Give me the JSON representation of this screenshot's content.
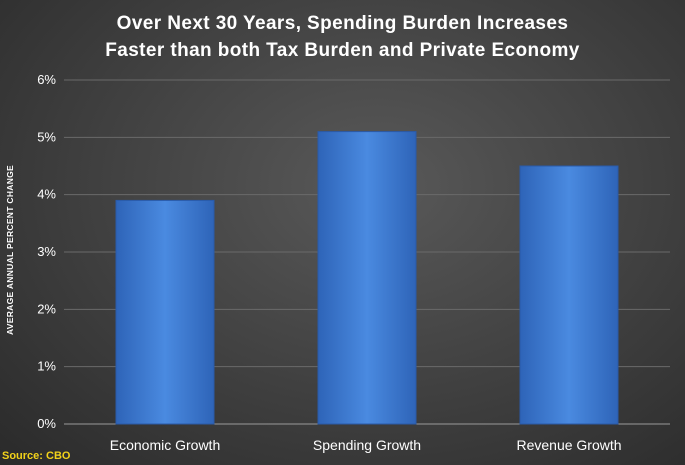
{
  "chart_title": {
    "line1": "Over Next 30 Years, Spending Burden Increases",
    "line2": "Faster than both Tax Burden and Private Economy"
  },
  "source": "Source: CBO",
  "chart_data": {
    "type": "bar",
    "title": "Over Next 30 Years, Spending Burden Increases Faster than both Tax Burden and Private Economy",
    "xlabel": "",
    "ylabel": "AVERAGE ANNUAL PERCENT CHANGE",
    "categories": [
      "Economic Growth",
      "Spending Growth",
      "Revenue Growth"
    ],
    "values": [
      3.9,
      5.1,
      4.5
    ],
    "ylim": [
      0,
      6
    ],
    "yticks": [
      0,
      1,
      2,
      3,
      4,
      5,
      6
    ],
    "ytick_labels": [
      "0%",
      "1%",
      "2%",
      "3%",
      "4%",
      "5%",
      "6%"
    ],
    "grid": true,
    "legend": "none",
    "bar_color": "#3a78d0"
  }
}
